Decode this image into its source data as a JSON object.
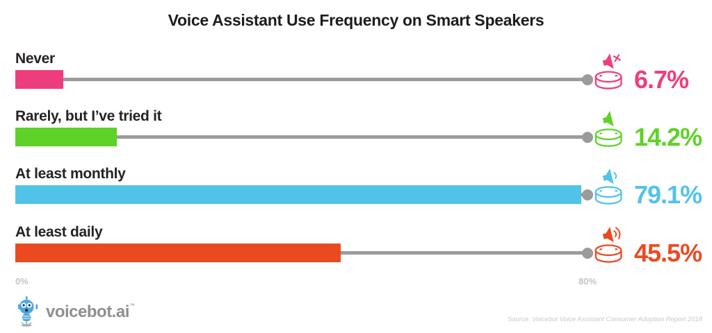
{
  "title": "Voice Assistant Use Frequency on Smart Speakers",
  "rows": [
    {
      "label": "Never",
      "value": 6.7,
      "pct_label": "6.7%",
      "color": "#EE3D7D",
      "icon": "muted"
    },
    {
      "label": "Rarely, but I’ve tried it",
      "value": 14.2,
      "pct_label": "14.2%",
      "color": "#5ED228",
      "icon": "quiet"
    },
    {
      "label": "At least monthly",
      "value": 79.1,
      "pct_label": "79.1%",
      "color": "#52C3E8",
      "icon": "low"
    },
    {
      "label": "At least daily",
      "value": 45.5,
      "pct_label": "45.5%",
      "color": "#EB4A21",
      "icon": "loud"
    }
  ],
  "axis": {
    "min_label": "0%",
    "max_label": "80%",
    "max_value": 80
  },
  "footer": {
    "logo_text": "voicebot.ai",
    "logo_tm": "™",
    "source": "Source: Voicebot Voice Assistant Consumer Adoption Report 2018"
  },
  "colors": {
    "track": "#9B9B9B",
    "axis_label": "#C4C4C4",
    "source_gray": "#C9C9C9",
    "logo_gray": "#8F8F8F",
    "logo_blue": "#4FA8DC"
  },
  "chart_data": {
    "type": "bar",
    "orientation": "horizontal",
    "title": "Voice Assistant Use Frequency on Smart Speakers",
    "categories": [
      "Never",
      "Rarely, but I’ve tried it",
      "At least monthly",
      "At least daily"
    ],
    "values": [
      6.7,
      14.2,
      79.1,
      45.5
    ],
    "data_labels": [
      "6.7%",
      "14.2%",
      "79.1%",
      "45.5%"
    ],
    "unit": "%",
    "xlim": [
      0,
      80
    ],
    "tick_labels": [
      "0%",
      "80%"
    ],
    "grid": false,
    "legend": false,
    "bar_colors": [
      "#EE3D7D",
      "#5ED228",
      "#52C3E8",
      "#EB4A21"
    ],
    "icon_variants": [
      "speaker-muted",
      "speaker-silent",
      "speaker-low",
      "speaker-loud"
    ],
    "source": "Source: Voicebot Voice Assistant Consumer Adoption Report 2018"
  }
}
